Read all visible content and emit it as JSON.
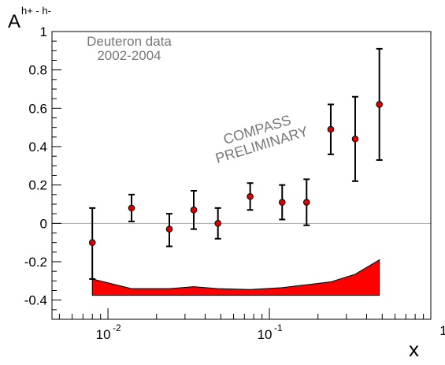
{
  "chart_data": {
    "type": "scatter",
    "ylabel_main": "A",
    "ylabel_super": "h+ - h-",
    "xlabel": "x",
    "x_scale": "log",
    "xlim": [
      0.0045,
      1.0
    ],
    "ylim": [
      -0.5,
      1.0
    ],
    "grid": false,
    "zero_line": true,
    "y_ticks": [
      {
        "value": 1.0,
        "label": "1"
      },
      {
        "value": 0.8,
        "label": "0.8"
      },
      {
        "value": 0.6,
        "label": "0.6"
      },
      {
        "value": 0.4,
        "label": "0.4"
      },
      {
        "value": 0.2,
        "label": "0.2"
      },
      {
        "value": 0.0,
        "label": "0"
      },
      {
        "value": -0.2,
        "label": "-0.2"
      },
      {
        "value": -0.4,
        "label": "-0.4"
      }
    ],
    "x_ticks": [
      {
        "value": 0.01,
        "base": "10",
        "exp": "-2"
      },
      {
        "value": 0.1,
        "base": "10",
        "exp": "-1"
      },
      {
        "value": 1.0,
        "base": "1",
        "exp": ""
      }
    ],
    "annotation_data_line1": "Deuteron data",
    "annotation_data_line2": "2002-2004",
    "annotation_compass_line1": "COMPASS",
    "annotation_compass_line2": "PRELIMINARY",
    "series": [
      {
        "type": "points_with_errors",
        "x": [
          0.008,
          0.014,
          0.024,
          0.034,
          0.048,
          0.076,
          0.12,
          0.17,
          0.24,
          0.34,
          0.48
        ],
        "y": [
          -0.1,
          0.08,
          -0.03,
          0.07,
          0.0,
          0.14,
          0.11,
          0.11,
          0.49,
          0.44,
          0.62
        ],
        "err_low": [
          0.19,
          0.07,
          0.09,
          0.1,
          0.08,
          0.07,
          0.09,
          0.12,
          0.13,
          0.22,
          0.29
        ],
        "err_high": [
          0.18,
          0.07,
          0.08,
          0.1,
          0.08,
          0.07,
          0.09,
          0.12,
          0.13,
          0.22,
          0.29
        ],
        "marker_color": "#dd0000"
      },
      {
        "type": "systematic_band",
        "x": [
          0.008,
          0.014,
          0.024,
          0.034,
          0.048,
          0.076,
          0.12,
          0.17,
          0.24,
          0.34,
          0.48
        ],
        "y_top": [
          -0.29,
          -0.34,
          -0.34,
          -0.33,
          -0.34,
          -0.345,
          -0.335,
          -0.32,
          -0.305,
          -0.265,
          -0.19
        ],
        "y_bottom": -0.375,
        "fill_color": "#ff0000"
      }
    ]
  }
}
